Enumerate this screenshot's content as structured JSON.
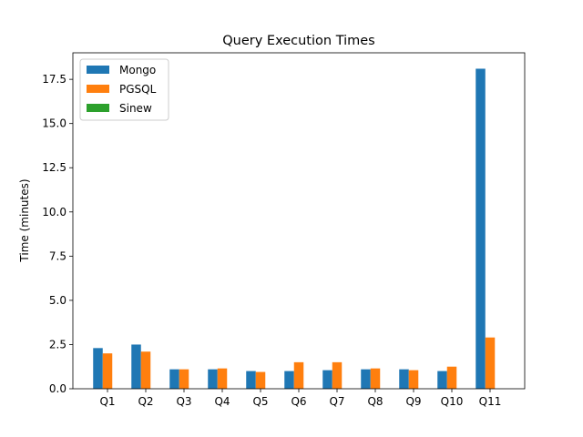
{
  "chart_data": {
    "type": "bar",
    "title": "Query Execution Times",
    "xlabel": "",
    "ylabel": "Time (minutes)",
    "categories": [
      "Q1",
      "Q2",
      "Q3",
      "Q4",
      "Q5",
      "Q6",
      "Q7",
      "Q8",
      "Q9",
      "Q10",
      "Q11"
    ],
    "series": [
      {
        "name": "Mongo",
        "color": "#1f77b4",
        "values": [
          2.3,
          2.5,
          1.1,
          1.1,
          1.0,
          1.0,
          1.05,
          1.1,
          1.1,
          1.0,
          18.1
        ]
      },
      {
        "name": "PGSQL",
        "color": "#ff7f0e",
        "values": [
          2.0,
          2.1,
          1.1,
          1.15,
          0.95,
          1.5,
          1.5,
          1.15,
          1.05,
          1.25,
          2.9
        ]
      },
      {
        "name": "Sinew",
        "color": "#2ca02c",
        "values": [
          0,
          0,
          0,
          0,
          0,
          0,
          0,
          0,
          0,
          0,
          0
        ]
      }
    ],
    "ylim": [
      0,
      19.0
    ],
    "yticks": [
      0.0,
      2.5,
      5.0,
      7.5,
      10.0,
      12.5,
      15.0,
      17.5
    ],
    "ytick_labels": [
      "0.0",
      "2.5",
      "5.0",
      "7.5",
      "10.0",
      "12.5",
      "15.0",
      "17.5"
    ],
    "legend_position": "upper-left",
    "grid": false
  }
}
